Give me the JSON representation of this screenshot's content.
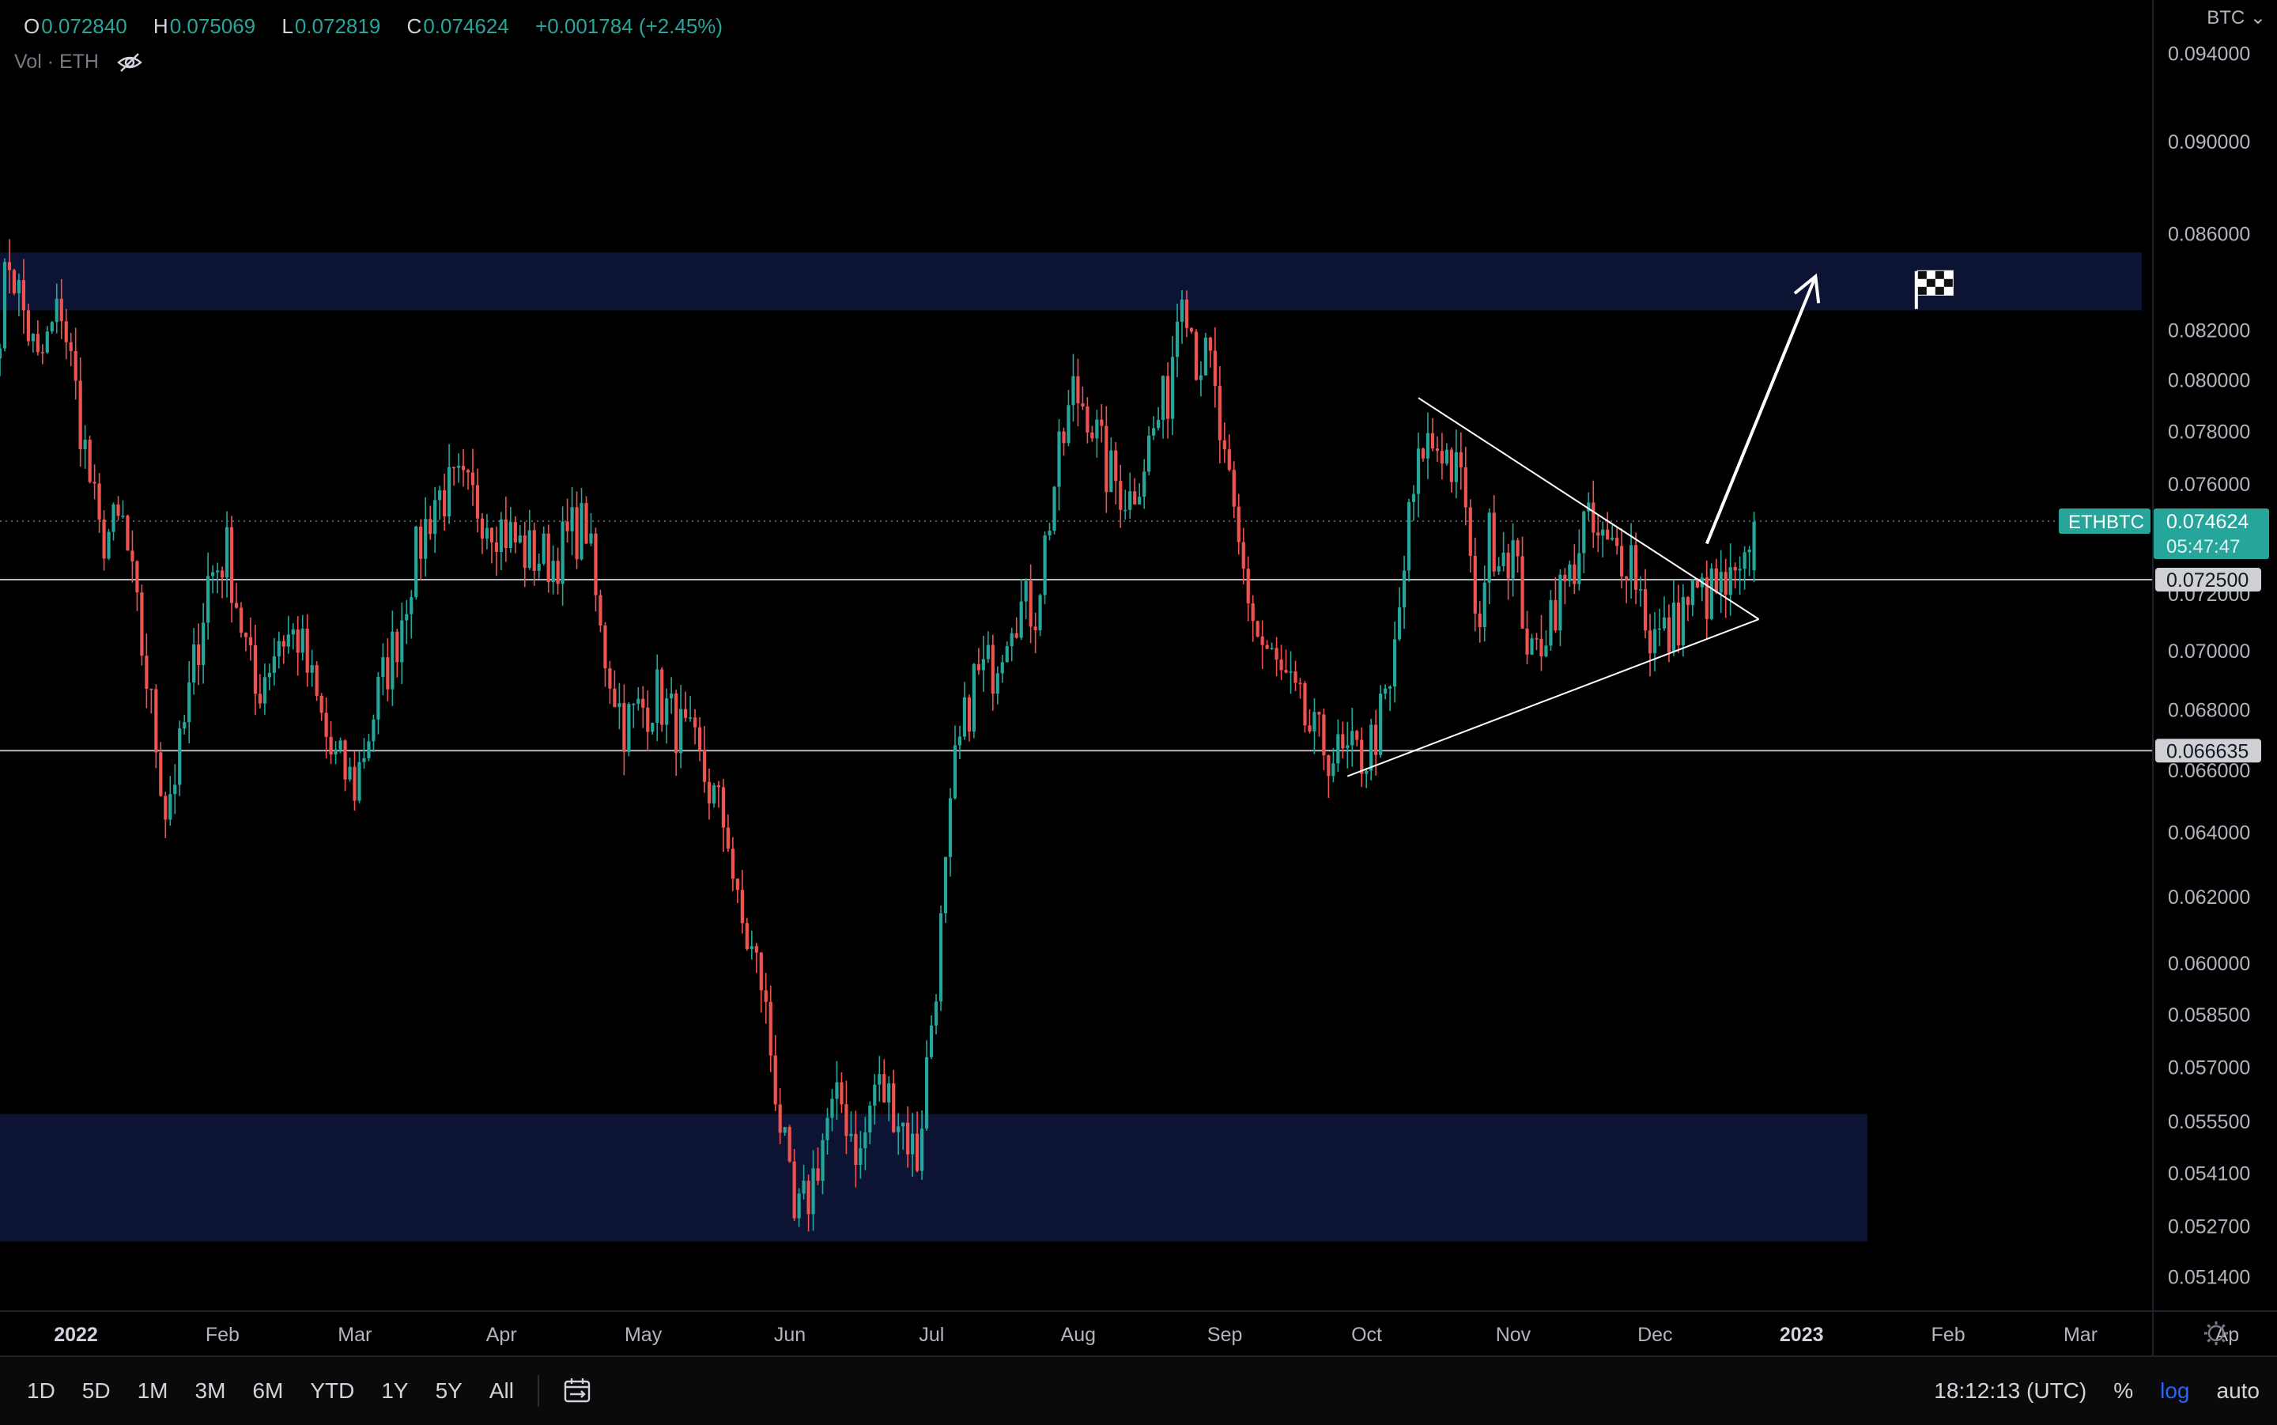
{
  "ohlc": {
    "o_label": "O",
    "o": "0.072840",
    "h_label": "H",
    "h": "0.075069",
    "l_label": "L",
    "l": "0.072819",
    "c_label": "C",
    "c": "0.074624",
    "change": "+0.001784 (+2.45%)"
  },
  "volume": {
    "label": "Vol · ETH",
    "icon": "eye-off-icon"
  },
  "currency": "BTC",
  "symbol_badge": {
    "text": "ETHBTC",
    "price": "0.074624",
    "countdown": "05:47:47"
  },
  "colors": {
    "up": "#26a69a",
    "down": "#ef5350",
    "zone": "#0d1433",
    "line": "#ffffff",
    "accent": "#2962ff"
  },
  "time_axis": [
    "2022",
    "Feb",
    "Mar",
    "Apr",
    "May",
    "Jun",
    "Jul",
    "Aug",
    "Sep",
    "Oct",
    "Nov",
    "Dec",
    "2023",
    "Feb",
    "Mar",
    "Ap"
  ],
  "price_axis": [
    "0.094000",
    "0.090000",
    "0.086000",
    "0.082000",
    "0.080000",
    "0.078000",
    "0.076000",
    "0.072000",
    "0.070000",
    "0.068000",
    "0.066000",
    "0.064000",
    "0.062000",
    "0.060000",
    "0.058500",
    "0.057000",
    "0.055500",
    "0.054100",
    "0.052700",
    "0.051400"
  ],
  "bottom_bar": {
    "timeframes": [
      "1D",
      "5D",
      "1M",
      "3M",
      "6M",
      "YTD",
      "1Y",
      "5Y",
      "All"
    ],
    "clock": "18:12:13 (UTC)",
    "percent": "%",
    "log": "log",
    "auto": "auto"
  },
  "chart_data": {
    "type": "candlestick",
    "symbol": "ETHBTC",
    "scale": "log",
    "x_range": [
      "2022-01-01",
      "2023-04-01"
    ],
    "ylim": [
      0.0505,
      0.0965
    ],
    "last_price": 0.074624,
    "horizontal_lines": [
      {
        "price": 0.0725,
        "label": "0.072500"
      },
      {
        "price": 0.066635,
        "label": "0.066635"
      }
    ],
    "zones": [
      {
        "from_date": "2022-01-01",
        "to_date": "2023-03-30",
        "low": 0.0828,
        "high": 0.0852
      },
      {
        "from_date": "2022-01-01",
        "to_date": "2023-01-31",
        "low": 0.0523,
        "high": 0.0557
      }
    ],
    "trendlines": [
      {
        "start": [
          "2022-10-28",
          0.0793
        ],
        "end": [
          "2023-01-08",
          0.0711
        ]
      },
      {
        "start": [
          "2022-10-13",
          0.0658
        ],
        "end": [
          "2023-01-08",
          0.0711
        ]
      }
    ],
    "arrow": {
      "start": [
        "2022-12-28",
        0.0738
      ],
      "end": [
        "2023-01-20",
        0.0842
      ]
    },
    "flag": {
      "date": "2023-02-14",
      "price": 0.0837
    },
    "anchors": [
      [
        "2022-01-01",
        0.0825
      ],
      [
        "2022-01-03",
        0.085
      ],
      [
        "2022-01-09",
        0.0805
      ],
      [
        "2022-01-14",
        0.083
      ],
      [
        "2022-01-22",
        0.074
      ],
      [
        "2022-01-27",
        0.0745
      ],
      [
        "2022-02-02",
        0.068
      ],
      [
        "2022-02-05",
        0.0648
      ],
      [
        "2022-02-08",
        0.0665
      ],
      [
        "2022-02-14",
        0.0725
      ],
      [
        "2022-02-18",
        0.0735
      ],
      [
        "2022-02-24",
        0.0685
      ],
      [
        "2022-03-01",
        0.0705
      ],
      [
        "2022-03-05",
        0.0705
      ],
      [
        "2022-03-12",
        0.0665
      ],
      [
        "2022-03-17",
        0.0655
      ],
      [
        "2022-03-22",
        0.0685
      ],
      [
        "2022-03-26",
        0.0705
      ],
      [
        "2022-03-29",
        0.0728
      ],
      [
        "2022-04-03",
        0.0755
      ],
      [
        "2022-04-08",
        0.0758
      ],
      [
        "2022-04-15",
        0.0748
      ],
      [
        "2022-04-22",
        0.0735
      ],
      [
        "2022-04-28",
        0.0732
      ],
      [
        "2022-05-02",
        0.0742
      ],
      [
        "2022-05-05",
        0.0745
      ],
      [
        "2022-05-08",
        0.0705
      ],
      [
        "2022-05-13",
        0.0675
      ],
      [
        "2022-05-20",
        0.0685
      ],
      [
        "2022-05-28",
        0.0665
      ],
      [
        "2022-06-04",
        0.064
      ],
      [
        "2022-06-06",
        0.0615
      ],
      [
        "2022-06-11",
        0.0595
      ],
      [
        "2022-06-15",
        0.0555
      ],
      [
        "2022-06-18",
        0.0527
      ],
      [
        "2022-06-21",
        0.0535
      ],
      [
        "2022-06-25",
        0.0555
      ],
      [
        "2022-06-28",
        0.056
      ],
      [
        "2022-07-02",
        0.0545
      ],
      [
        "2022-07-05",
        0.0565
      ],
      [
        "2022-07-09",
        0.056
      ],
      [
        "2022-07-14",
        0.0545
      ],
      [
        "2022-07-19",
        0.061
      ],
      [
        "2022-07-22",
        0.066
      ],
      [
        "2022-07-26",
        0.069
      ],
      [
        "2022-07-30",
        0.0695
      ],
      [
        "2022-08-03",
        0.0715
      ],
      [
        "2022-08-08",
        0.0715
      ],
      [
        "2022-08-12",
        0.076
      ],
      [
        "2022-08-16",
        0.0795
      ],
      [
        "2022-08-19",
        0.079
      ],
      [
        "2022-08-23",
        0.0765
      ],
      [
        "2022-08-28",
        0.0755
      ],
      [
        "2022-09-01",
        0.0775
      ],
      [
        "2022-09-05",
        0.0795
      ],
      [
        "2022-09-08",
        0.0845
      ],
      [
        "2022-09-11",
        0.081
      ],
      [
        "2022-09-14",
        0.0805
      ],
      [
        "2022-09-17",
        0.0765
      ],
      [
        "2022-09-20",
        0.0735
      ],
      [
        "2022-09-24",
        0.0705
      ],
      [
        "2022-10-01",
        0.0685
      ],
      [
        "2022-10-06",
        0.067
      ],
      [
        "2022-10-12",
        0.0663
      ],
      [
        "2022-10-17",
        0.0665
      ],
      [
        "2022-10-22",
        0.0685
      ],
      [
        "2022-10-26",
        0.0745
      ],
      [
        "2022-10-29",
        0.0775
      ],
      [
        "2022-11-02",
        0.0775
      ],
      [
        "2022-11-07",
        0.0755
      ],
      [
        "2022-11-09",
        0.0705
      ],
      [
        "2022-11-12",
        0.074
      ],
      [
        "2022-11-17",
        0.0735
      ],
      [
        "2022-11-21",
        0.0695
      ],
      [
        "2022-11-25",
        0.0715
      ],
      [
        "2022-11-29",
        0.0725
      ],
      [
        "2022-12-02",
        0.0745
      ],
      [
        "2022-12-07",
        0.0735
      ],
      [
        "2022-12-12",
        0.0735
      ],
      [
        "2022-12-16",
        0.0705
      ],
      [
        "2022-12-20",
        0.0705
      ],
      [
        "2022-12-24",
        0.0718
      ],
      [
        "2022-12-29",
        0.072
      ],
      [
        "2023-01-03",
        0.0722
      ],
      [
        "2023-01-06",
        0.0728
      ],
      [
        "2023-01-07",
        0.0746
      ]
    ]
  }
}
